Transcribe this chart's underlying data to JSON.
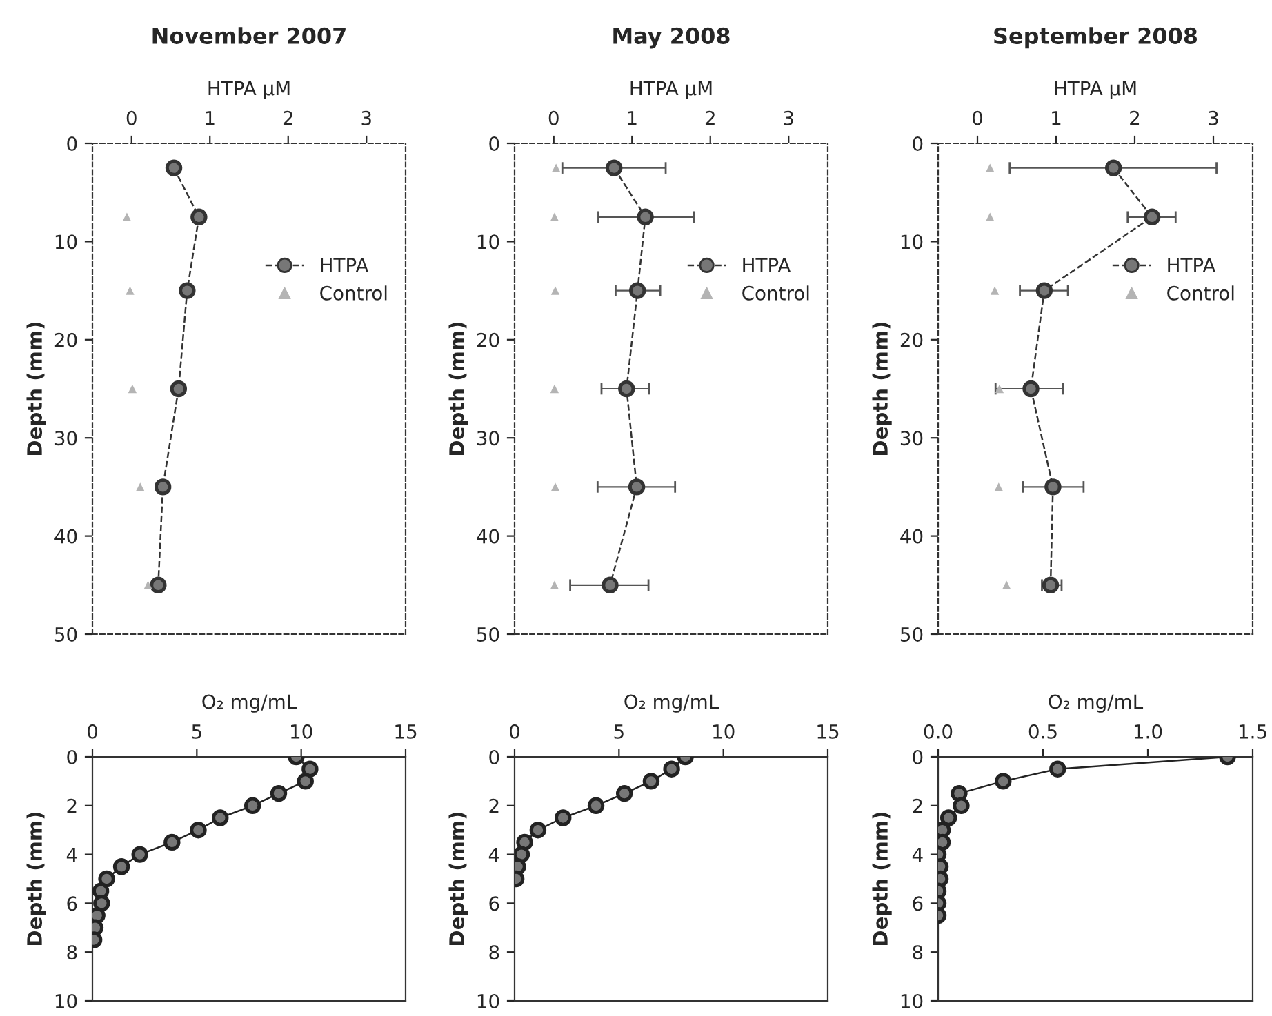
{
  "chart_data": [
    {
      "type": "line",
      "title": "November 2007",
      "xlabel": "HTPA μM",
      "ylabel": "Depth (mm)",
      "xlim": [
        -0.5,
        3.5
      ],
      "xticks": [
        0,
        1,
        2,
        3
      ],
      "ylim": [
        50,
        0
      ],
      "yticks": [
        0,
        10,
        20,
        30,
        40,
        50
      ],
      "legend": "right",
      "grid": false,
      "series": [
        {
          "name": "HTPA",
          "color": "#333333",
          "marker": "circle",
          "line_style": "dashed",
          "x": [
            0.54,
            0.86,
            0.71,
            0.6,
            0.4,
            0.34
          ],
          "values": [
            2.5,
            7.5,
            15,
            25,
            35,
            45
          ]
        },
        {
          "name": "Control",
          "type": "scatter",
          "color": "#b4b4b4",
          "marker": "triangle",
          "x": [
            -0.06,
            -0.02,
            0.01,
            0.11,
            0.21
          ],
          "values": [
            7.5,
            15,
            25,
            35,
            45
          ]
        }
      ]
    },
    {
      "type": "line",
      "title": "May 2008",
      "xlabel": "HTPA μM",
      "ylabel": "Depth (mm)",
      "xlim": [
        -0.5,
        3.5
      ],
      "xticks": [
        0,
        1,
        2,
        3
      ],
      "ylim": [
        50,
        0
      ],
      "yticks": [
        0,
        10,
        20,
        30,
        40,
        50
      ],
      "legend": "right",
      "grid": false,
      "series": [
        {
          "name": "HTPA",
          "color": "#333333",
          "marker": "circle",
          "line_style": "dashed",
          "x": [
            0.77,
            1.17,
            1.07,
            0.93,
            1.06,
            0.72
          ],
          "values": [
            2.5,
            7.5,
            15,
            25,
            35,
            45
          ],
          "xerrors": [
            [
              0.11,
              1.43
            ],
            [
              0.57,
              1.79
            ],
            [
              0.79,
              1.36
            ],
            [
              0.61,
              1.22
            ],
            [
              0.56,
              1.55
            ],
            [
              0.21,
              1.21
            ]
          ]
        },
        {
          "name": "Control",
          "type": "scatter",
          "color": "#b4b4b4",
          "marker": "triangle",
          "x": [
            0.03,
            0.01,
            0.02,
            0.01,
            0.02,
            0.01
          ],
          "values": [
            2.5,
            7.5,
            15,
            25,
            35,
            45
          ]
        }
      ]
    },
    {
      "type": "line",
      "title": "September 2008",
      "xlabel": "HTPA μM",
      "ylabel": "Depth (mm)",
      "xlim": [
        -0.5,
        3.5
      ],
      "xticks": [
        0,
        1,
        2,
        3
      ],
      "ylim": [
        50,
        0
      ],
      "yticks": [
        0,
        10,
        20,
        30,
        40,
        50
      ],
      "legend": "right",
      "grid": false,
      "series": [
        {
          "name": "HTPA",
          "color": "#333333",
          "marker": "circle",
          "line_style": "dashed",
          "x": [
            1.73,
            2.22,
            0.85,
            0.68,
            0.96,
            0.93
          ],
          "values": [
            2.5,
            7.5,
            15,
            25,
            35,
            45
          ],
          "xerrors": [
            [
              0.41,
              3.04
            ],
            [
              1.91,
              2.52
            ],
            [
              0.54,
              1.15
            ],
            [
              0.23,
              1.09
            ],
            [
              0.58,
              1.35
            ],
            [
              0.82,
              1.07
            ]
          ]
        },
        {
          "name": "Control",
          "type": "scatter",
          "color": "#b4b4b4",
          "marker": "triangle",
          "x": [
            0.16,
            0.16,
            0.22,
            0.28,
            0.27,
            0.37
          ],
          "values": [
            2.5,
            7.5,
            15,
            25,
            35,
            45
          ]
        }
      ]
    },
    {
      "type": "line",
      "xlabel": "O₂ mg/mL",
      "ylabel": "Depth (mm)",
      "xlim": [
        0,
        15
      ],
      "xticks": [
        0,
        5,
        10,
        15
      ],
      "ylim": [
        10,
        0
      ],
      "yticks": [
        0,
        2,
        4,
        6,
        8,
        10
      ],
      "grid": false,
      "series": [
        {
          "color": "#222222",
          "marker": "circle",
          "line_style": "solid",
          "x": [
            9.76,
            10.42,
            10.2,
            8.92,
            7.67,
            6.12,
            5.07,
            3.81,
            2.27,
            1.39,
            0.68,
            0.4,
            0.44,
            0.22,
            0.13,
            0.07
          ],
          "values": [
            0,
            0.5,
            1,
            1.5,
            2,
            2.5,
            3,
            3.5,
            4,
            4.5,
            5,
            5.5,
            6,
            6.5,
            7,
            7.5
          ]
        }
      ]
    },
    {
      "type": "line",
      "xlabel": "O₂ mg/mL",
      "ylabel": "Depth (mm)",
      "xlim": [
        0,
        15
      ],
      "xticks": [
        0,
        5,
        10,
        15
      ],
      "ylim": [
        10,
        0
      ],
      "yticks": [
        0,
        2,
        4,
        6,
        8,
        10
      ],
      "grid": false,
      "series": [
        {
          "color": "#222222",
          "marker": "circle",
          "line_style": "solid",
          "x": [
            8.18,
            7.52,
            6.54,
            5.26,
            3.9,
            2.32,
            1.12,
            0.48,
            0.33,
            0.15,
            0.07
          ],
          "values": [
            0,
            0.5,
            1,
            1.5,
            2,
            2.5,
            3,
            3.5,
            4,
            4.5,
            5
          ]
        }
      ]
    },
    {
      "type": "line",
      "xlabel": "O₂ mg/mL",
      "ylabel": "Depth (mm)",
      "xlim": [
        0,
        1.5
      ],
      "xticks": [
        {
          "value": 0,
          "label": "0.0"
        },
        0.5,
        {
          "value": 1,
          "label": "1.0"
        },
        1.5
      ],
      "ylim": [
        10,
        0
      ],
      "yticks": [
        0,
        2,
        4,
        6,
        8,
        10
      ],
      "grid": false,
      "series": [
        {
          "color": "#222222",
          "marker": "circle",
          "line_style": "solid",
          "x": [
            1.38,
            0.57,
            0.31,
            0.1,
            0.11,
            0.05,
            0.02,
            0.02,
            0.0,
            0.01,
            0.01,
            0.0,
            0.0,
            0.0
          ],
          "values": [
            0,
            0.5,
            1,
            1.5,
            2,
            2.5,
            3,
            3.5,
            4,
            4.5,
            5,
            5.5,
            6,
            6.5
          ]
        }
      ]
    }
  ]
}
